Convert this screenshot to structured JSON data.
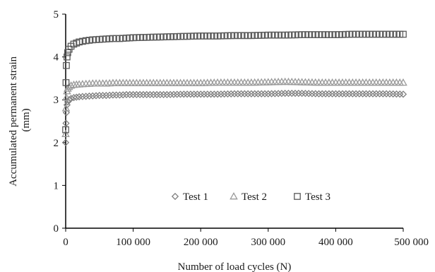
{
  "chart_data": {
    "type": "scatter",
    "title": "",
    "xlabel": "Number of load cycles (N)",
    "ylabel": "Accumulated permanent strain (mm)",
    "ylabel_lines": [
      "Accumulated permanent strain",
      "(mm)"
    ],
    "xlim": [
      0,
      500000
    ],
    "ylim": [
      0,
      5
    ],
    "x_ticks": [
      0,
      100000,
      200000,
      300000,
      400000,
      500000
    ],
    "x_tick_labels": [
      "0",
      "100 000",
      "200 000",
      "300 000",
      "400 000",
      "500 000"
    ],
    "y_ticks": [
      0,
      1,
      2,
      3,
      4,
      5
    ],
    "y_tick_labels": [
      "0",
      "1",
      "2",
      "3",
      "4",
      "5"
    ],
    "grid": false,
    "legend_position": "bottom-right",
    "series": [
      {
        "name": "Test 1",
        "marker": "diamond",
        "color": "#808080",
        "x": [
          0,
          500,
          1000,
          2000,
          3000,
          5000,
          8000,
          12000,
          20000,
          30000,
          40000,
          50000,
          60000,
          70000,
          80000,
          90000,
          100000,
          125000,
          150000,
          175000,
          200000,
          225000,
          250000,
          275000,
          300000,
          325000,
          350000,
          375000,
          400000,
          425000,
          450000,
          475000,
          500000
        ],
        "y": [
          2.0,
          2.45,
          2.7,
          2.88,
          2.95,
          3.0,
          3.03,
          3.05,
          3.07,
          3.08,
          3.09,
          3.1,
          3.1,
          3.11,
          3.11,
          3.12,
          3.12,
          3.12,
          3.12,
          3.13,
          3.13,
          3.13,
          3.14,
          3.14,
          3.14,
          3.15,
          3.15,
          3.14,
          3.14,
          3.14,
          3.14,
          3.14,
          3.13
        ]
      },
      {
        "name": "Test 2",
        "marker": "triangle",
        "color": "#9a9a9a",
        "x": [
          0,
          500,
          1000,
          2000,
          3000,
          5000,
          8000,
          12000,
          20000,
          30000,
          40000,
          50000,
          60000,
          70000,
          80000,
          90000,
          100000,
          125000,
          150000,
          175000,
          200000,
          225000,
          250000,
          275000,
          300000,
          325000,
          350000,
          375000,
          400000,
          425000,
          450000,
          475000,
          500000
        ],
        "y": [
          2.2,
          2.8,
          3.05,
          3.2,
          3.26,
          3.3,
          3.33,
          3.35,
          3.36,
          3.37,
          3.38,
          3.38,
          3.38,
          3.39,
          3.39,
          3.39,
          3.39,
          3.39,
          3.39,
          3.39,
          3.39,
          3.4,
          3.4,
          3.4,
          3.41,
          3.42,
          3.41,
          3.4,
          3.4,
          3.4,
          3.4,
          3.4,
          3.4
        ]
      },
      {
        "name": "Test 3",
        "marker": "square",
        "color": "#5a5a5a",
        "x": [
          0,
          500,
          1000,
          2000,
          3000,
          5000,
          8000,
          12000,
          20000,
          30000,
          40000,
          50000,
          60000,
          70000,
          80000,
          90000,
          100000,
          125000,
          150000,
          175000,
          200000,
          225000,
          250000,
          275000,
          300000,
          325000,
          350000,
          375000,
          400000,
          425000,
          450000,
          475000,
          500000
        ],
        "y": [
          2.3,
          3.4,
          3.8,
          4.0,
          4.1,
          4.18,
          4.25,
          4.3,
          4.35,
          4.38,
          4.4,
          4.41,
          4.42,
          4.43,
          4.43,
          4.44,
          4.45,
          4.46,
          4.47,
          4.48,
          4.49,
          4.49,
          4.5,
          4.5,
          4.51,
          4.51,
          4.52,
          4.52,
          4.52,
          4.53,
          4.53,
          4.53,
          4.53
        ]
      }
    ]
  }
}
